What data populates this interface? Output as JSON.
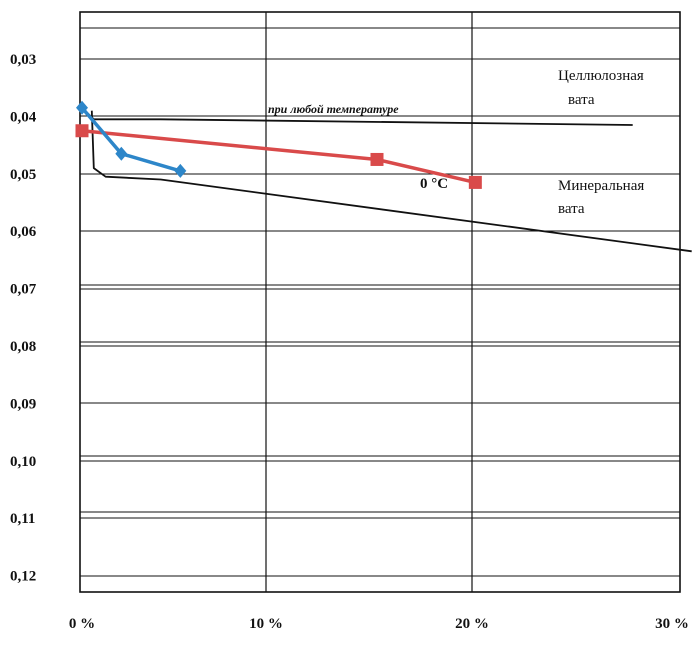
{
  "chart_data": {
    "type": "line",
    "x_ticks": [
      "0 %",
      "10 %",
      "20 %",
      "30 %"
    ],
    "y_ticks": [
      "0,03",
      "0,04",
      "0,05",
      "0,06",
      "0,07",
      "0,08",
      "0,09",
      "0,10",
      "0,11",
      "0,12"
    ],
    "xlim": [
      0,
      30
    ],
    "ylim": [
      0.12,
      0.03
    ],
    "y_axis_inverted": true,
    "grid": true,
    "annotations": {
      "cellulose": [
        "Целлюлозная",
        "вата"
      ],
      "mineral": [
        "Минеральная",
        "вата"
      ],
      "any_temperature": "при любой температуре",
      "zero_c": "0 °C"
    },
    "series": [
      {
        "color": "#111111",
        "marker": "none",
        "points": [
          [
            0,
            0.0385
          ],
          [
            0.6,
            0.0405
          ],
          [
            4,
            0.0405
          ],
          [
            28,
            0.0415
          ]
        ]
      },
      {
        "color": "#111111",
        "marker": "none",
        "points": [
          [
            0.5,
            0.039
          ],
          [
            0.6,
            0.049
          ],
          [
            1.2,
            0.0505
          ],
          [
            4,
            0.051
          ],
          [
            31,
            0.0635
          ]
        ]
      },
      {
        "color": "#d94a4a",
        "marker": "square",
        "points": [
          [
            0,
            0.0425
          ],
          [
            15,
            0.0475
          ],
          [
            20,
            0.0515
          ]
        ]
      },
      {
        "color": "#2d86c9",
        "marker": "diamond",
        "points": [
          [
            0,
            0.0385
          ],
          [
            2,
            0.0465
          ],
          [
            5,
            0.0495
          ]
        ]
      }
    ]
  }
}
